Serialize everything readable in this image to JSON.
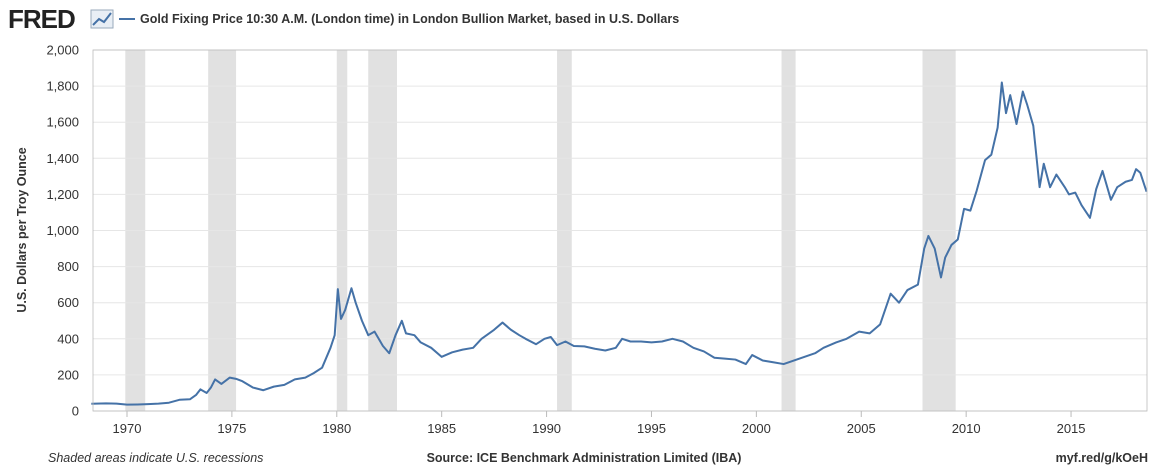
{
  "chart_data": {
    "type": "line",
    "logo": "FRED",
    "title": "Gold Fixing Price 10:30 A.M. (London time) in London Bullion Market, based in U.S. Dollars",
    "ylabel": "U.S. Dollars per Troy Ounce",
    "note": "Shaded areas indicate U.S. recessions",
    "source": "Source: ICE Benchmark Administration Limited (IBA)",
    "link": "myf.red/g/kOeH",
    "xlim": [
      1968.38,
      2018.62
    ],
    "xticks": [
      1970,
      1975,
      1980,
      1985,
      1990,
      1995,
      2000,
      2005,
      2010,
      2015
    ],
    "ylim": [
      0,
      2000
    ],
    "yticks": [
      0,
      200,
      400,
      600,
      800,
      {
        "value": 1000,
        "label": "1,000"
      },
      {
        "value": 1200,
        "label": "1,200"
      },
      {
        "value": 1400,
        "label": "1,400"
      },
      {
        "value": 1600,
        "label": "1,600"
      },
      {
        "value": 1800,
        "label": "1,800"
      },
      {
        "value": 2000,
        "label": "2,000"
      }
    ],
    "grid": true,
    "recession_color": "#e1e1e1",
    "recessions": [
      [
        1969.92,
        1970.87
      ],
      [
        1973.87,
        1975.2
      ],
      [
        1980.0,
        1980.5
      ],
      [
        1981.5,
        1982.87
      ],
      [
        1990.5,
        1991.2
      ],
      [
        2001.2,
        2001.87
      ],
      [
        2007.92,
        2009.5
      ]
    ],
    "x": [
      1968.3,
      1969,
      1969.5,
      1970,
      1970.5,
      1971,
      1971.5,
      1972,
      1972.5,
      1973,
      1973.3,
      1973.5,
      1973.8,
      1974,
      1974.2,
      1974.5,
      1974.9,
      1975.2,
      1975.5,
      1976,
      1976.5,
      1977,
      1977.5,
      1978,
      1978.5,
      1978.9,
      1979.3,
      1979.7,
      1979.9,
      1980.05,
      1980.2,
      1980.4,
      1980.6,
      1980.7,
      1980.9,
      1981.2,
      1981.5,
      1981.8,
      1982.2,
      1982.5,
      1982.8,
      1983.1,
      1983.3,
      1983.7,
      1984,
      1984.5,
      1985,
      1985.5,
      1986,
      1986.5,
      1986.9,
      1987.5,
      1987.9,
      1988.3,
      1988.7,
      1989,
      1989.5,
      1989.9,
      1990.2,
      1990.5,
      1990.9,
      1991.3,
      1991.8,
      1992.3,
      1992.8,
      1993.3,
      1993.6,
      1994,
      1994.5,
      1995,
      1995.5,
      1996,
      1996.5,
      1997,
      1997.5,
      1998,
      1998.5,
      1999,
      1999.5,
      1999.8,
      2000.3,
      2000.8,
      2001.3,
      2001.8,
      2002.3,
      2002.8,
      2003.2,
      2003.8,
      2004.3,
      2004.9,
      2005.4,
      2005.9,
      2006.4,
      2006.8,
      2007.2,
      2007.7,
      2008.0,
      2008.2,
      2008.5,
      2008.8,
      2009.0,
      2009.3,
      2009.6,
      2009.9,
      2010.2,
      2010.5,
      2010.9,
      2011.2,
      2011.5,
      2011.7,
      2011.9,
      2012.1,
      2012.4,
      2012.7,
      2012.9,
      2013.2,
      2013.5,
      2013.7,
      2014.0,
      2014.3,
      2014.7,
      2014.9,
      2015.2,
      2015.5,
      2015.9,
      2016.2,
      2016.5,
      2016.9,
      2017.2,
      2017.6,
      2017.9,
      2018.1,
      2018.3,
      2018.5,
      2018.6
    ],
    "series": [
      {
        "name": "Gold Fixing Price 10:30 A.M. (London time) in London Bullion Market, based in U.S. Dollars",
        "color": "#4572a7",
        "values": [
          40,
          42,
          41,
          35,
          36,
          38,
          41,
          46,
          62,
          65,
          90,
          120,
          100,
          130,
          175,
          150,
          185,
          178,
          165,
          130,
          115,
          135,
          145,
          175,
          185,
          210,
          240,
          350,
          420,
          675,
          510,
          560,
          640,
          680,
          600,
          500,
          420,
          440,
          360,
          320,
          420,
          500,
          430,
          420,
          380,
          350,
          300,
          325,
          340,
          350,
          400,
          450,
          490,
          450,
          420,
          400,
          370,
          400,
          410,
          365,
          385,
          360,
          358,
          345,
          335,
          350,
          400,
          385,
          385,
          380,
          385,
          400,
          385,
          350,
          330,
          295,
          290,
          285,
          260,
          310,
          280,
          270,
          260,
          280,
          300,
          320,
          350,
          380,
          400,
          440,
          430,
          480,
          650,
          600,
          670,
          700,
          900,
          970,
          900,
          740,
          850,
          920,
          950,
          1120,
          1110,
          1220,
          1390,
          1420,
          1570,
          1820,
          1650,
          1750,
          1590,
          1770,
          1700,
          1580,
          1240,
          1370,
          1240,
          1310,
          1240,
          1200,
          1210,
          1140,
          1070,
          1230,
          1330,
          1170,
          1240,
          1270,
          1280,
          1340,
          1320,
          1250,
          1215
        ]
      }
    ]
  }
}
